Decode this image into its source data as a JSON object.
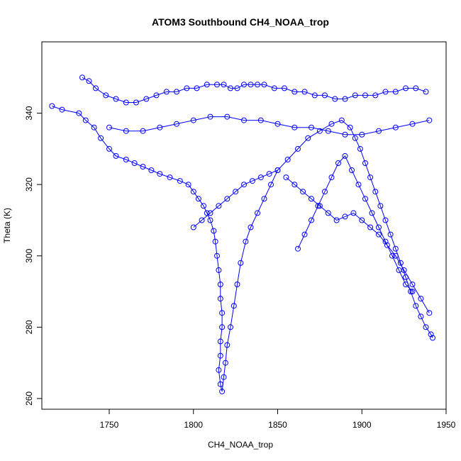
{
  "chart_data": {
    "type": "scatter",
    "title": "ATOM3 Southbound CH4_NOAA_trop",
    "xlabel": "CH4_NOAA_trop",
    "ylabel": "Theta (K)",
    "xlim": [
      1710,
      1950
    ],
    "ylim": [
      257,
      360
    ],
    "xticks": [
      1750,
      1800,
      1850,
      1900,
      1950
    ],
    "yticks": [
      260,
      280,
      300,
      320,
      340
    ],
    "grid": false,
    "legend": "none",
    "point_style": "open-circle",
    "color": "#0000ff",
    "series": [
      {
        "x": [
          1716,
          1722,
          1732,
          1736,
          1741,
          1745,
          1750,
          1754,
          1760,
          1765,
          1770,
          1775,
          1780,
          1786,
          1792,
          1797,
          1800,
          1803,
          1806,
          1808,
          1810,
          1812,
          1813,
          1814,
          1815,
          1816,
          1816,
          1817,
          1817,
          1816,
          1816,
          1815,
          1816,
          1817,
          1818,
          1819,
          1820,
          1822,
          1824,
          1826,
          1828,
          1831,
          1834,
          1838,
          1842,
          1846,
          1850,
          1856,
          1862,
          1868,
          1875,
          1882,
          1888,
          1893,
          1896,
          1899,
          1902,
          1905,
          1908,
          1911,
          1914,
          1917,
          1920,
          1923,
          1926,
          1929,
          1932,
          1935,
          1938,
          1941,
          1942
        ],
        "y": [
          342,
          341,
          340,
          338,
          336,
          333,
          330,
          328,
          327,
          326,
          325,
          324,
          323,
          322,
          321,
          320,
          318,
          316,
          314,
          312,
          310,
          307,
          304,
          300,
          296,
          292,
          288,
          284,
          280,
          276,
          272,
          268,
          264,
          262,
          266,
          270,
          275,
          280,
          286,
          292,
          298,
          304,
          308,
          312,
          316,
          320,
          324,
          327,
          330,
          333,
          335,
          337,
          338,
          336,
          333,
          330,
          326,
          322,
          318,
          314,
          310,
          306,
          302,
          298,
          294,
          290,
          286,
          283,
          280,
          278,
          277
        ]
      },
      {
        "x": [
          1734,
          1738,
          1742,
          1748,
          1754,
          1760,
          1766,
          1772,
          1778,
          1784,
          1790,
          1796,
          1802,
          1808,
          1814,
          1818,
          1822,
          1826,
          1830,
          1834,
          1838,
          1842,
          1848,
          1854,
          1860,
          1866,
          1872,
          1878,
          1884,
          1890,
          1896,
          1902,
          1908,
          1914,
          1920,
          1926,
          1932,
          1938
        ],
        "y": [
          350,
          349,
          347,
          345,
          344,
          343,
          343,
          344,
          345,
          346,
          346,
          347,
          347,
          348,
          348,
          348,
          347,
          347,
          348,
          348,
          348,
          348,
          347,
          347,
          346,
          346,
          345,
          345,
          344,
          344,
          345,
          345,
          345,
          346,
          346,
          347,
          347,
          346
        ]
      },
      {
        "x": [
          1750,
          1760,
          1770,
          1780,
          1790,
          1800,
          1810,
          1820,
          1830,
          1840,
          1850,
          1860,
          1870,
          1880,
          1890,
          1900,
          1910,
          1920,
          1930,
          1940
        ],
        "y": [
          336,
          335,
          335,
          336,
          337,
          338,
          339,
          339,
          338,
          338,
          337,
          336,
          336,
          335,
          334,
          334,
          335,
          336,
          337,
          338
        ]
      },
      {
        "x": [
          1862,
          1866,
          1870,
          1874,
          1878,
          1882,
          1886,
          1890,
          1894,
          1898,
          1902,
          1906,
          1910,
          1914,
          1918,
          1922,
          1926,
          1930
        ],
        "y": [
          302,
          306,
          310,
          314,
          318,
          322,
          326,
          328,
          324,
          320,
          316,
          312,
          308,
          304,
          300,
          296,
          292,
          290
        ]
      },
      {
        "x": [
          1855,
          1860,
          1865,
          1870,
          1875,
          1880,
          1885,
          1890,
          1895,
          1900,
          1905,
          1910,
          1915,
          1920,
          1925,
          1930,
          1935,
          1940
        ],
        "y": [
          322,
          320,
          318,
          316,
          314,
          312,
          310,
          311,
          312,
          310,
          308,
          306,
          303,
          300,
          296,
          292,
          288,
          284
        ]
      },
      {
        "x": [
          1800,
          1805,
          1810,
          1815,
          1820,
          1825,
          1830,
          1835,
          1840,
          1845,
          1850
        ],
        "y": [
          308,
          310,
          312,
          314,
          316,
          318,
          320,
          321,
          322,
          323,
          324
        ]
      }
    ]
  }
}
